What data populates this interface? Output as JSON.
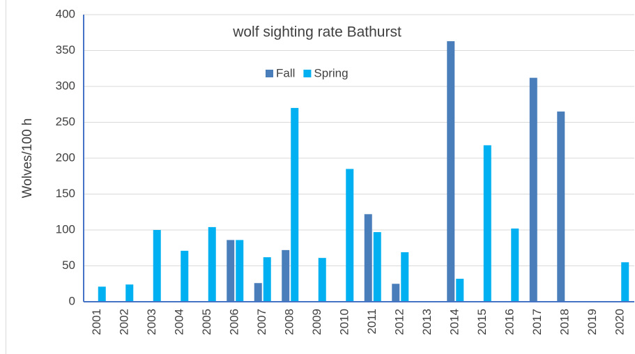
{
  "chart_data": {
    "type": "bar",
    "title": "wolf sighting rate Bathurst",
    "y_label": "Wolves/100 h",
    "categories": [
      "2001",
      "2002",
      "2003",
      "2004",
      "2005",
      "2006",
      "2007",
      "2008",
      "2009",
      "2010",
      "2011",
      "2012",
      "2013",
      "2014",
      "2015",
      "2016",
      "2017",
      "2018",
      "2019",
      "2020"
    ],
    "series": [
      {
        "name": "Fall",
        "color": "#4a7ebb",
        "values": [
          null,
          null,
          null,
          null,
          null,
          86,
          26,
          72,
          null,
          null,
          122,
          25,
          null,
          363,
          null,
          null,
          312,
          265,
          null,
          null
        ]
      },
      {
        "name": "Spring",
        "color": "#00b0f0",
        "values": [
          21,
          24,
          100,
          71,
          104,
          86,
          62,
          270,
          61,
          185,
          97,
          69,
          null,
          32,
          218,
          102,
          null,
          null,
          null,
          55
        ]
      }
    ],
    "ylim": [
      0,
      400
    ],
    "yticks": [
      0,
      50,
      100,
      150,
      200,
      250,
      300,
      350,
      400
    ],
    "grid": true,
    "legend": "top"
  }
}
